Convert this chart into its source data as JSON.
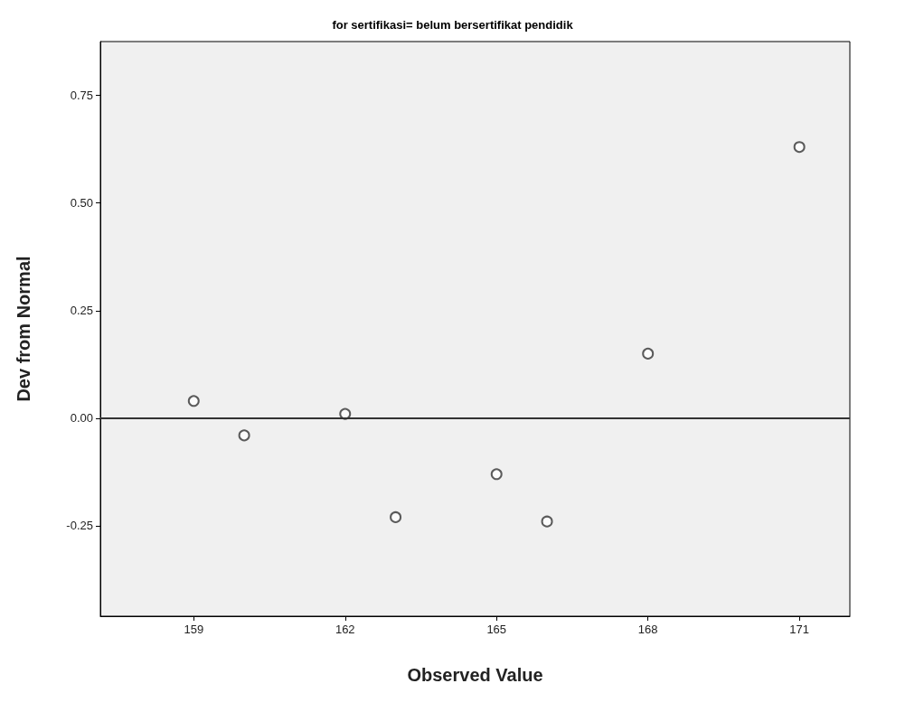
{
  "chart_data": {
    "type": "scatter",
    "title": "for sertifikasi= belum bersertifikat pendidik",
    "xlabel": "Observed Value",
    "ylabel": "Dev from Normal",
    "x": [
      159,
      160,
      162,
      163,
      165,
      166,
      168,
      171
    ],
    "series": [
      {
        "color": "#333333",
        "values": [
          0.04,
          -0.04,
          0.01,
          -0.23,
          -0.13,
          -0.24,
          0.15,
          0.63
        ]
      }
    ],
    "xlim": [
      157.15,
      172.0
    ],
    "xticks": [
      159,
      162,
      165,
      168,
      171
    ],
    "ylim": [
      -0.46,
      0.875
    ],
    "yticks": [
      {
        "value": -0.25,
        "label": "-0.25"
      },
      {
        "value": 0,
        "label": "0.00"
      },
      {
        "value": 0.25,
        "label": "0.25"
      },
      {
        "value": 0.5,
        "label": "0.50"
      },
      {
        "value": 0.75,
        "label": "0.75"
      }
    ],
    "ref_lines": [
      {
        "axis": "y",
        "value": 0,
        "color": "#333333",
        "line_style": "solid"
      }
    ],
    "grid": false,
    "marker": "circle"
  }
}
